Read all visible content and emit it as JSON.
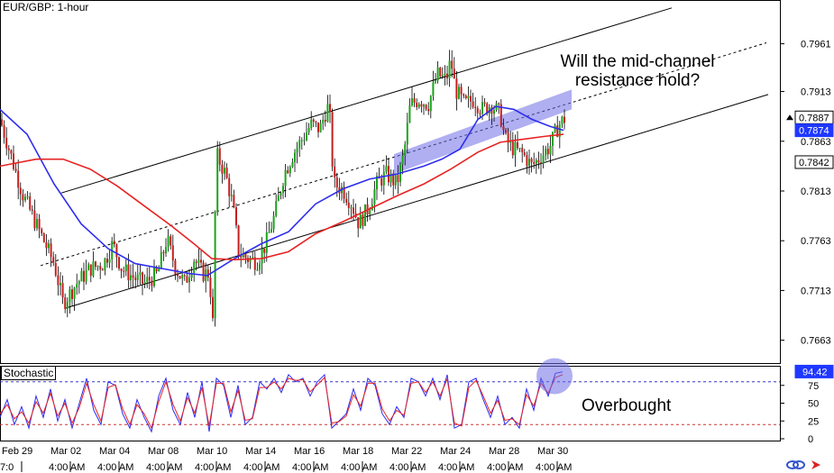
{
  "header": {
    "symbol_timeframe": "EUR/GBP: 1-hour"
  },
  "stoch_panel": {
    "label": "Stochastic",
    "current_value": "94.42"
  },
  "annotations": {
    "question": "Will the mid-channel resistance hold?",
    "overbought": "Overbought"
  },
  "chart_data": [
    {
      "type": "candlestick",
      "title": "EUR/GBP: 1-hour",
      "ylim": [
        0.764,
        0.8005
      ],
      "y_ticks": [
        "0.7961",
        "0.7913",
        "0.7863",
        "0.7813",
        "0.7763",
        "0.7713",
        "0.7663"
      ],
      "price_labels": [
        {
          "value": 0.7887,
          "text": "0.7887",
          "style": "current"
        },
        {
          "value": 0.7874,
          "text": "0.7874",
          "style": "highlight"
        },
        {
          "value": 0.7842,
          "text": "0.7842",
          "style": "plain"
        }
      ],
      "x_labels": [
        "Feb 29",
        "Mar 02",
        "Mar 04",
        "Mar 08",
        "Mar 10",
        "Mar 14",
        "Mar 16",
        "Mar 18",
        "Mar 22",
        "Mar 24",
        "Mar 28",
        "Mar 30"
      ],
      "close_path": [
        [
          0,
          0.7885
        ],
        [
          15,
          0.784
        ],
        [
          25,
          0.781
        ],
        [
          35,
          0.779
        ],
        [
          45,
          0.777
        ],
        [
          60,
          0.774
        ],
        [
          70,
          0.77
        ],
        [
          85,
          0.772
        ],
        [
          100,
          0.7735
        ],
        [
          115,
          0.774
        ],
        [
          125,
          0.776
        ],
        [
          135,
          0.7735
        ],
        [
          150,
          0.7725
        ],
        [
          160,
          0.772
        ],
        [
          175,
          0.773
        ],
        [
          185,
          0.7765
        ],
        [
          195,
          0.7735
        ],
        [
          205,
          0.772
        ],
        [
          215,
          0.7745
        ],
        [
          225,
          0.773
        ],
        [
          232,
          0.773
        ],
        [
          236,
          0.768
        ],
        [
          240,
          0.785
        ],
        [
          250,
          0.783
        ],
        [
          258,
          0.78
        ],
        [
          265,
          0.775
        ],
        [
          275,
          0.7745
        ],
        [
          285,
          0.7742
        ],
        [
          295,
          0.776
        ],
        [
          305,
          0.779
        ],
        [
          315,
          0.783
        ],
        [
          325,
          0.785
        ],
        [
          335,
          0.7865
        ],
        [
          345,
          0.788
        ],
        [
          355,
          0.7875
        ],
        [
          360,
          0.789
        ],
        [
          365,
          0.79
        ],
        [
          370,
          0.782
        ],
        [
          380,
          0.7815
        ],
        [
          390,
          0.78
        ],
        [
          398,
          0.778
        ],
        [
          408,
          0.7795
        ],
        [
          418,
          0.782
        ],
        [
          428,
          0.783
        ],
        [
          440,
          0.782
        ],
        [
          448,
          0.785
        ],
        [
          455,
          0.79
        ],
        [
          465,
          0.7905
        ],
        [
          475,
          0.79
        ],
        [
          485,
          0.793
        ],
        [
          495,
          0.7925
        ],
        [
          500,
          0.7945
        ],
        [
          505,
          0.7915
        ],
        [
          515,
          0.79
        ],
        [
          525,
          0.7905
        ],
        [
          535,
          0.7895
        ],
        [
          545,
          0.79
        ],
        [
          555,
          0.789
        ],
        [
          560,
          0.7865
        ],
        [
          570,
          0.7855
        ],
        [
          580,
          0.785
        ],
        [
          590,
          0.7838
        ],
        [
          600,
          0.7848
        ],
        [
          610,
          0.7858
        ],
        [
          620,
          0.788
        ],
        [
          628,
          0.7887
        ]
      ],
      "series": [
        {
          "name": "",
          "color": "#2d2df0",
          "values": [
            [
              0,
              0.7895
            ],
            [
              30,
              0.787
            ],
            [
              60,
              0.782
            ],
            [
              90,
              0.778
            ],
            [
              120,
              0.7755
            ],
            [
              150,
              0.774
            ],
            [
              180,
              0.7735
            ],
            [
              210,
              0.773
            ],
            [
              230,
              0.7728
            ],
            [
              260,
              0.7745
            ],
            [
              290,
              0.776
            ],
            [
              320,
              0.7772
            ],
            [
              350,
              0.78
            ],
            [
              380,
              0.7815
            ],
            [
              410,
              0.7825
            ],
            [
              440,
              0.783
            ],
            [
              470,
              0.7838
            ],
            [
              490,
              0.7845
            ],
            [
              510,
              0.7855
            ],
            [
              530,
              0.7885
            ],
            [
              550,
              0.7898
            ],
            [
              570,
              0.7895
            ],
            [
              590,
              0.7885
            ],
            [
              610,
              0.7878
            ],
            [
              625,
              0.7874
            ]
          ]
        },
        {
          "name": "",
          "color": "#e82323",
          "values": [
            [
              0,
              0.7838
            ],
            [
              40,
              0.7845
            ],
            [
              70,
              0.7845
            ],
            [
              100,
              0.7835
            ],
            [
              130,
              0.7818
            ],
            [
              160,
              0.7798
            ],
            [
              190,
              0.7778
            ],
            [
              215,
              0.776
            ],
            [
              235,
              0.7745
            ],
            [
              260,
              0.7744
            ],
            [
              290,
              0.7745
            ],
            [
              320,
              0.7752
            ],
            [
              350,
              0.777
            ],
            [
              380,
              0.7782
            ],
            [
              410,
              0.7795
            ],
            [
              440,
              0.7808
            ],
            [
              470,
              0.782
            ],
            [
              500,
              0.7835
            ],
            [
              530,
              0.7852
            ],
            [
              555,
              0.7862
            ],
            [
              580,
              0.7865
            ],
            [
              605,
              0.7868
            ],
            [
              625,
              0.787
            ]
          ]
        }
      ],
      "channel": {
        "upper": [
          [
            68,
            0.7811
          ],
          [
            745,
            0.7997
          ]
        ],
        "middle": [
          [
            45,
            0.7738
          ],
          [
            850,
            0.7962
          ]
        ],
        "lower": [
          [
            72,
            0.7695
          ],
          [
            852,
            0.791
          ]
        ]
      },
      "resistance_zone": [
        [
          437,
          0.785
        ],
        [
          634,
          0.7905
        ]
      ],
      "grid": false
    },
    {
      "type": "line",
      "title": "Stochastic",
      "ylim": [
        0,
        100
      ],
      "y_ticks": [
        "75",
        "50",
        "25",
        "0"
      ],
      "current_value": 94.42,
      "levels": [
        80,
        20
      ],
      "series": [
        {
          "name": "",
          "color": "#2d2df0",
          "values": [
            [
              0,
              30
            ],
            [
              8,
              55
            ],
            [
              16,
              20
            ],
            [
              24,
              45
            ],
            [
              32,
              15
            ],
            [
              40,
              60
            ],
            [
              48,
              30
            ],
            [
              56,
              70
            ],
            [
              64,
              25
            ],
            [
              72,
              55
            ],
            [
              80,
              15
            ],
            [
              88,
              50
            ],
            [
              96,
              85
            ],
            [
              104,
              40
            ],
            [
              112,
              20
            ],
            [
              120,
              80
            ],
            [
              128,
              75
            ],
            [
              136,
              35
            ],
            [
              144,
              15
            ],
            [
              152,
              55
            ],
            [
              160,
              30
            ],
            [
              168,
              10
            ],
            [
              176,
              60
            ],
            [
              184,
              85
            ],
            [
              192,
              40
            ],
            [
              200,
              20
            ],
            [
              208,
              65
            ],
            [
              216,
              30
            ],
            [
              224,
              80
            ],
            [
              232,
              10
            ],
            [
              240,
              85
            ],
            [
              248,
              75
            ],
            [
              256,
              30
            ],
            [
              264,
              75
            ],
            [
              272,
              20
            ],
            [
              280,
              30
            ],
            [
              288,
              80
            ],
            [
              296,
              70
            ],
            [
              304,
              85
            ],
            [
              312,
              65
            ],
            [
              320,
              90
            ],
            [
              328,
              80
            ],
            [
              336,
              85
            ],
            [
              344,
              60
            ],
            [
              352,
              80
            ],
            [
              360,
              90
            ],
            [
              368,
              15
            ],
            [
              376,
              25
            ],
            [
              384,
              35
            ],
            [
              392,
              70
            ],
            [
              400,
              40
            ],
            [
              408,
              85
            ],
            [
              416,
              75
            ],
            [
              424,
              35
            ],
            [
              432,
              20
            ],
            [
              440,
              45
            ],
            [
              448,
              30
            ],
            [
              456,
              85
            ],
            [
              464,
              80
            ],
            [
              472,
              60
            ],
            [
              480,
              85
            ],
            [
              488,
              55
            ],
            [
              496,
              90
            ],
            [
              504,
              15
            ],
            [
              512,
              20
            ],
            [
              520,
              80
            ],
            [
              528,
              85
            ],
            [
              536,
              55
            ],
            [
              544,
              30
            ],
            [
              552,
              60
            ],
            [
              560,
              20
            ],
            [
              568,
              30
            ],
            [
              576,
              15
            ],
            [
              584,
              70
            ],
            [
              592,
              40
            ],
            [
              600,
              85
            ],
            [
              608,
              60
            ],
            [
              616,
              92
            ],
            [
              624,
              94
            ]
          ]
        },
        {
          "name": "",
          "color": "#e82323",
          "values": [
            [
              0,
              35
            ],
            [
              8,
              48
            ],
            [
              16,
              28
            ],
            [
              24,
              38
            ],
            [
              32,
              22
            ],
            [
              40,
              52
            ],
            [
              48,
              36
            ],
            [
              56,
              64
            ],
            [
              64,
              32
            ],
            [
              72,
              50
            ],
            [
              80,
              22
            ],
            [
              88,
              44
            ],
            [
              96,
              78
            ],
            [
              104,
              48
            ],
            [
              112,
              25
            ],
            [
              120,
              72
            ],
            [
              128,
              76
            ],
            [
              136,
              42
            ],
            [
              144,
              20
            ],
            [
              152,
              48
            ],
            [
              160,
              35
            ],
            [
              168,
              15
            ],
            [
              176,
              52
            ],
            [
              184,
              80
            ],
            [
              192,
              48
            ],
            [
              200,
              25
            ],
            [
              208,
              58
            ],
            [
              216,
              36
            ],
            [
              224,
              72
            ],
            [
              232,
              18
            ],
            [
              240,
              78
            ],
            [
              248,
              78
            ],
            [
              256,
              38
            ],
            [
              264,
              68
            ],
            [
              272,
              26
            ],
            [
              280,
              28
            ],
            [
              288,
              72
            ],
            [
              296,
              72
            ],
            [
              304,
              80
            ],
            [
              312,
              70
            ],
            [
              320,
              85
            ],
            [
              328,
              82
            ],
            [
              336,
              83
            ],
            [
              344,
              66
            ],
            [
              352,
              76
            ],
            [
              360,
              86
            ],
            [
              368,
              22
            ],
            [
              376,
              24
            ],
            [
              384,
              32
            ],
            [
              392,
              62
            ],
            [
              400,
              46
            ],
            [
              408,
              78
            ],
            [
              416,
              78
            ],
            [
              424,
              42
            ],
            [
              432,
              25
            ],
            [
              440,
              40
            ],
            [
              448,
              33
            ],
            [
              456,
              78
            ],
            [
              464,
              80
            ],
            [
              472,
              65
            ],
            [
              480,
              80
            ],
            [
              488,
              60
            ],
            [
              496,
              84
            ],
            [
              504,
              22
            ],
            [
              512,
              18
            ],
            [
              520,
              72
            ],
            [
              528,
              82
            ],
            [
              536,
              60
            ],
            [
              544,
              36
            ],
            [
              552,
              54
            ],
            [
              560,
              26
            ],
            [
              568,
              28
            ],
            [
              576,
              20
            ],
            [
              584,
              62
            ],
            [
              592,
              46
            ],
            [
              600,
              78
            ],
            [
              608,
              64
            ],
            [
              616,
              86
            ],
            [
              624,
              90
            ]
          ]
        }
      ]
    }
  ]
}
